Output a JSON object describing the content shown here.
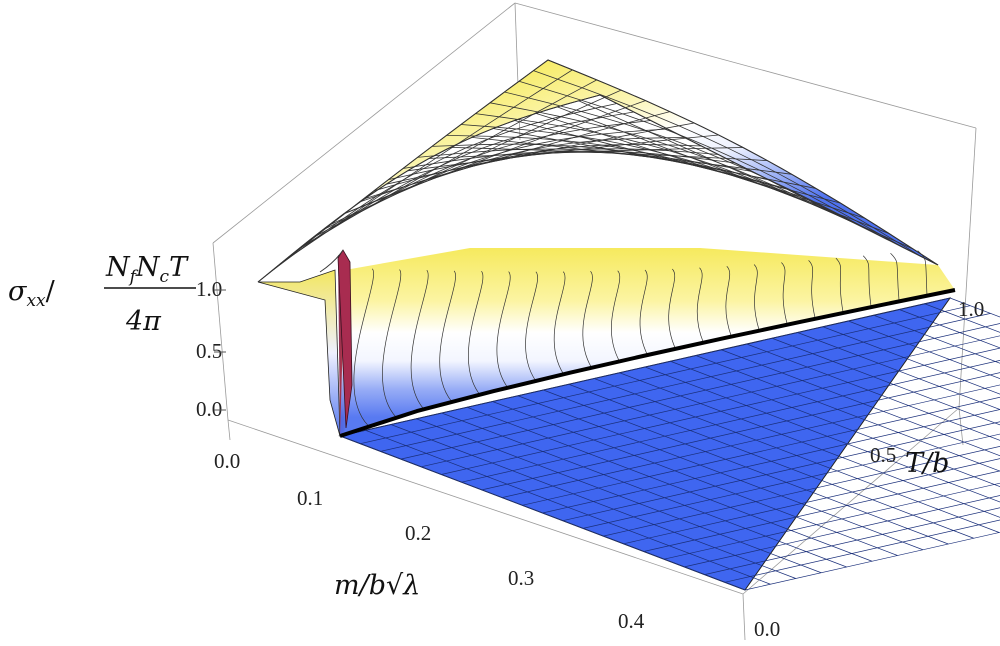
{
  "chart_data": {
    "type": "surface3d",
    "z_label": {
      "main": "σ",
      "sub": "xx",
      "slash": "/",
      "numerator_parts": [
        "N",
        "f",
        "N",
        "c",
        "T"
      ],
      "denominator": "4π"
    },
    "x_label": "m/b√λ",
    "y_label": "T/b",
    "x_ticks": [
      "0.0",
      "0.1",
      "0.2",
      "0.3",
      "0.4"
    ],
    "y_ticks": [
      "0.0",
      "0.5",
      "1.0"
    ],
    "z_ticks": [
      "0.0",
      "0.5",
      "1.0"
    ],
    "x_range": [
      0.0,
      0.47
    ],
    "y_range": [
      0.0,
      1.05
    ],
    "z_range": [
      -0.1,
      1.3
    ],
    "phase_boundary": {
      "m": [
        0.065,
        0.1,
        0.15,
        0.2,
        0.25,
        0.3,
        0.35,
        0.4,
        0.45
      ],
      "T": [
        0.0,
        0.18,
        0.33,
        0.46,
        0.58,
        0.69,
        0.8,
        0.9,
        1.0
      ]
    },
    "peak": {
      "m": 0.062,
      "T": 0.0,
      "z": 1.2
    },
    "colors": {
      "high": "#f7ec5a",
      "mid": "#ffffff",
      "low": "#3a62ee",
      "peak": "#b03050",
      "boundary": "#000000"
    }
  }
}
